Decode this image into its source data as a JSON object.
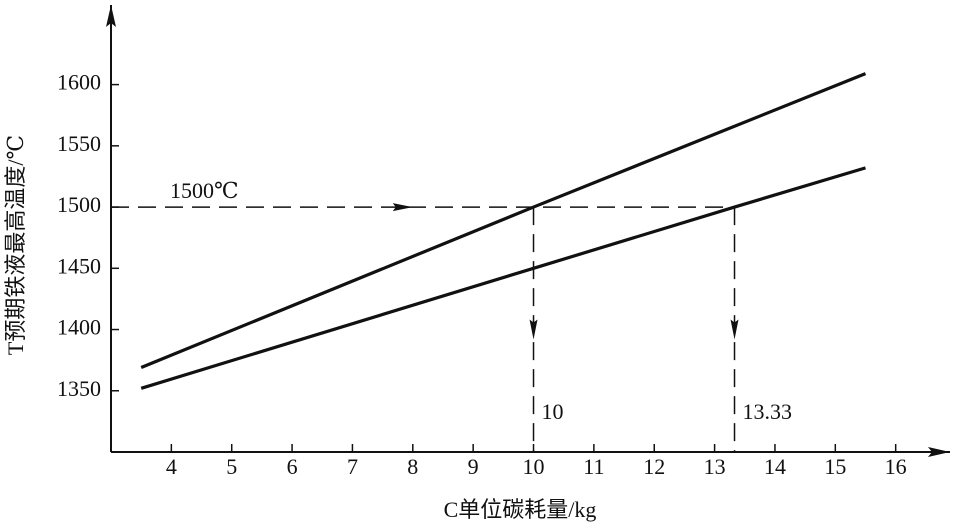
{
  "chart_data": {
    "type": "line",
    "x_label": "C单位碳耗量/kg",
    "y_label": "T预期铁液最高温度/℃",
    "xlim": [
      3,
      16.9
    ],
    "ylim": [
      1300,
      1665
    ],
    "xticks": [
      4,
      5,
      6,
      7,
      8,
      9,
      10,
      11,
      12,
      13,
      14,
      15,
      16
    ],
    "yticks": [
      1350,
      1400,
      1450,
      1500,
      1550,
      1600
    ],
    "grid": false,
    "series": [
      {
        "color": "#111111",
        "x": [
          3.5,
          10,
          15.5
        ],
        "values": [
          1369,
          1500,
          1609
        ]
      },
      {
        "color": "#111111",
        "x": [
          3.5,
          10,
          13.33,
          15.5
        ],
        "values": [
          1352,
          1450,
          1500,
          1532
        ]
      }
    ],
    "reference": {
      "y": 1500,
      "label": "1500℃"
    },
    "markers": [
      {
        "x": 10,
        "label": "10"
      },
      {
        "x": 13.33,
        "label": "13.33"
      }
    ]
  }
}
